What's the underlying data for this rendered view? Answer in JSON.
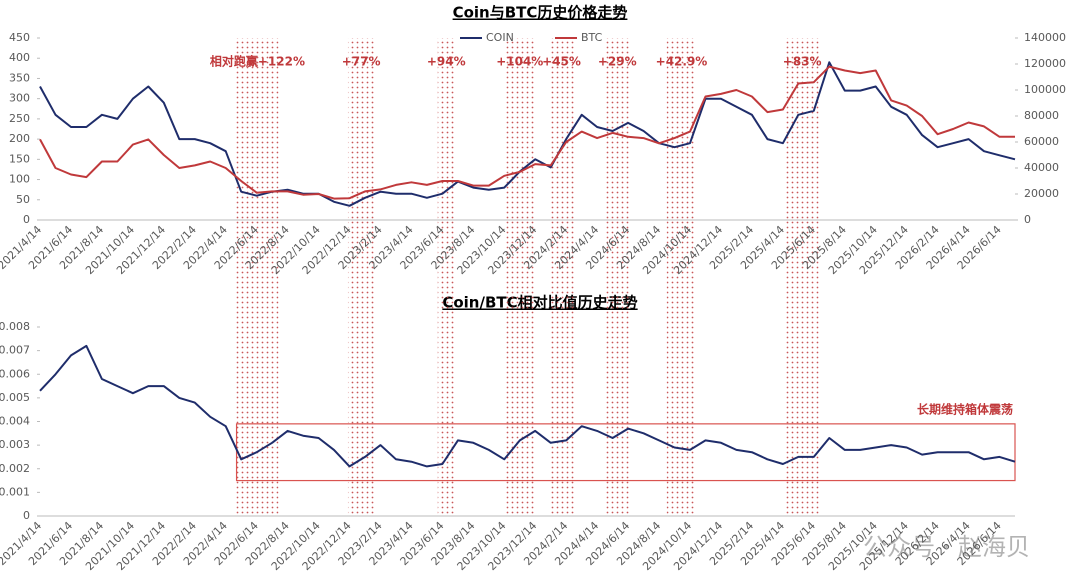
{
  "chart_data": [
    {
      "type": "line",
      "title": "Coin与BTC历史价格走势",
      "categories": [
        "2021/4/14",
        null,
        "2021/6/14",
        null,
        "2021/8/14",
        null,
        "2021/10/14",
        null,
        "2021/12/14",
        null,
        "2022/2/14",
        null,
        "2022/4/14",
        null,
        "2022/6/14",
        null,
        "2022/8/14",
        null,
        "2022/10/14",
        null,
        "2022/12/14",
        null,
        "2023/2/14",
        null,
        "2023/4/14",
        null,
        "2023/6/14",
        null,
        "2023/8/14",
        null,
        "2023/10/14",
        null,
        "2023/12/14",
        null,
        "2024/2/14",
        null,
        "2024/4/14",
        null,
        "2024/6/14",
        null,
        "2024/8/14",
        null,
        "2024/10/14",
        null,
        "2024/12/14",
        null,
        "2025/2/14",
        null,
        "2025/4/14",
        null,
        "2025/6/14",
        null,
        "2025/8/14",
        null,
        "2025/10/14",
        null,
        "2025/12/14",
        null,
        "2026/2/14",
        null,
        "2026/4/14",
        null,
        "2026/6/14",
        null
      ],
      "series": [
        {
          "name": "COIN",
          "color": "#1f2d6b",
          "values": [
            330,
            260,
            230,
            230,
            260,
            250,
            300,
            330,
            290,
            200,
            200,
            190,
            170,
            70,
            60,
            70,
            75,
            65,
            65,
            45,
            35,
            55,
            70,
            65,
            65,
            55,
            65,
            95,
            80,
            75,
            80,
            120,
            150,
            130,
            200,
            260,
            230,
            220,
            240,
            220,
            190,
            180,
            190,
            300,
            300,
            280,
            260,
            200,
            190,
            260,
            270,
            390,
            320,
            320,
            330,
            280,
            260,
            210,
            180,
            190,
            200,
            170,
            160,
            150
          ]
        },
        {
          "name": "BTC",
          "color": "#c0393b",
          "axis": "y2",
          "values": [
            62000,
            40000,
            35000,
            33000,
            45000,
            45000,
            58000,
            62000,
            50000,
            40000,
            42000,
            45000,
            40000,
            30000,
            21000,
            22000,
            22000,
            19500,
            20000,
            16500,
            16800,
            22000,
            23500,
            27000,
            29000,
            27000,
            30000,
            30000,
            26500,
            26500,
            34000,
            37000,
            43000,
            42000,
            60000,
            68000,
            63000,
            67000,
            64000,
            63000,
            59000,
            63000,
            68000,
            95000,
            97000,
            100000,
            95000,
            83000,
            85000,
            105000,
            106000,
            118000,
            115000,
            113000,
            115000,
            92000,
            88000,
            80000,
            66000,
            70000,
            75000,
            72000,
            64000,
            64000
          ]
        }
      ],
      "ylim": [
        0,
        450
      ],
      "yticks": [
        0,
        50,
        100,
        150,
        200,
        250,
        300,
        350,
        400,
        450
      ],
      "y2lim": [
        0,
        140000
      ],
      "y2ticks": [
        0,
        20000,
        40000,
        60000,
        80000,
        100000,
        120000,
        140000
      ],
      "legend": "top",
      "shaded_periods": [
        {
          "label": "相对跑赢+122%",
          "from": 12.7,
          "to": 15.4
        },
        {
          "label": "+77%",
          "from": 19.9,
          "to": 21.6
        },
        {
          "label": "+94%",
          "from": 25.7,
          "to": 26.8
        },
        {
          "label": "+104%",
          "from": 30.1,
          "to": 31.9
        },
        {
          "label": "+45%",
          "from": 32.9,
          "to": 34.5
        },
        {
          "label": "+29%",
          "from": 36.5,
          "to": 38.1
        },
        {
          "label": "+42.9%",
          "from": 40.5,
          "to": 42.4
        },
        {
          "label": "+83%",
          "from": 48.2,
          "to": 50.3
        }
      ]
    },
    {
      "type": "line",
      "title": "Coin/BTC相对比值历史走势",
      "categories": [
        "2021/4/14",
        null,
        "2021/6/14",
        null,
        "2021/8/14",
        null,
        "2021/10/14",
        null,
        "2021/12/14",
        null,
        "2022/2/14",
        null,
        "2022/4/14",
        null,
        "2022/6/14",
        null,
        "2022/8/14",
        null,
        "2022/10/14",
        null,
        "2022/12/14",
        null,
        "2023/2/14",
        null,
        "2023/4/14",
        null,
        "2023/6/14",
        null,
        "2023/8/14",
        null,
        "2023/10/14",
        null,
        "2023/12/14",
        null,
        "2024/2/14",
        null,
        "2024/4/14",
        null,
        "2024/6/14",
        null,
        "2024/8/14",
        null,
        "2024/10/14",
        null,
        "2024/12/14",
        null,
        "2025/2/14",
        null,
        "2025/4/14",
        null,
        "2025/6/14",
        null,
        "2025/8/14",
        null,
        "2025/10/14",
        null,
        "2025/12/14",
        null,
        "2026/2/14",
        null,
        "2026/4/14",
        null,
        "2026/6/14",
        null
      ],
      "series": [
        {
          "name": "COIN/BTC",
          "color": "#1f2d6b",
          "values": [
            0.0053,
            0.006,
            0.0068,
            0.0072,
            0.0058,
            0.0055,
            0.0052,
            0.0055,
            0.0055,
            0.005,
            0.0048,
            0.0042,
            0.0038,
            0.0024,
            0.0027,
            0.0031,
            0.0036,
            0.0034,
            0.0033,
            0.0028,
            0.0021,
            0.0025,
            0.003,
            0.0024,
            0.0023,
            0.0021,
            0.0022,
            0.0032,
            0.0031,
            0.0028,
            0.0024,
            0.0032,
            0.0036,
            0.0031,
            0.0032,
            0.0038,
            0.0036,
            0.0033,
            0.0037,
            0.0035,
            0.0032,
            0.0029,
            0.0028,
            0.0032,
            0.0031,
            0.0028,
            0.0027,
            0.0024,
            0.0022,
            0.0025,
            0.0025,
            0.0033,
            0.0028,
            0.0028,
            0.0029,
            0.003,
            0.0029,
            0.0026,
            0.0027,
            0.0027,
            0.0027,
            0.0024,
            0.0025,
            0.0023
          ]
        }
      ],
      "ylim": [
        0,
        0.008
      ],
      "yticks": [
        0,
        0.001,
        0.002,
        0.003,
        0.004,
        0.005,
        0.006,
        0.007,
        0.008
      ],
      "box": {
        "label": "长期维持箱体震荡",
        "from": 12.7,
        "to": 63,
        "ymin": 0.0015,
        "ymax": 0.0039
      }
    }
  ],
  "watermark": "公众号 · 赵海贝"
}
